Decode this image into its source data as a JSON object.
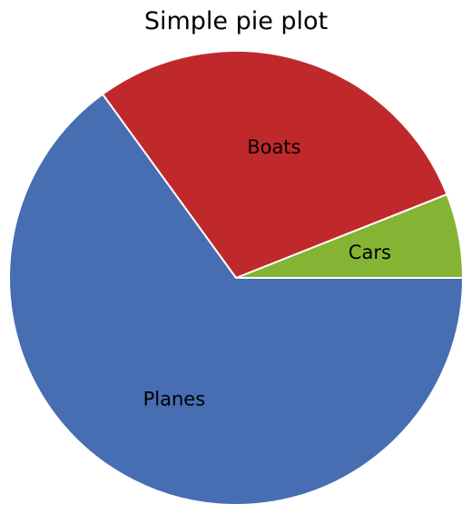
{
  "chart_data": {
    "type": "pie",
    "title": "Simple pie plot",
    "start_angle_deg": 0,
    "direction": "counterclockwise",
    "slices": [
      {
        "label": "Cars",
        "value": 6,
        "color": "#85b434"
      },
      {
        "label": "Boats",
        "value": 29,
        "color": "#c0292b"
      },
      {
        "label": "Planes",
        "value": 65,
        "color": "#476db3"
      }
    ]
  }
}
